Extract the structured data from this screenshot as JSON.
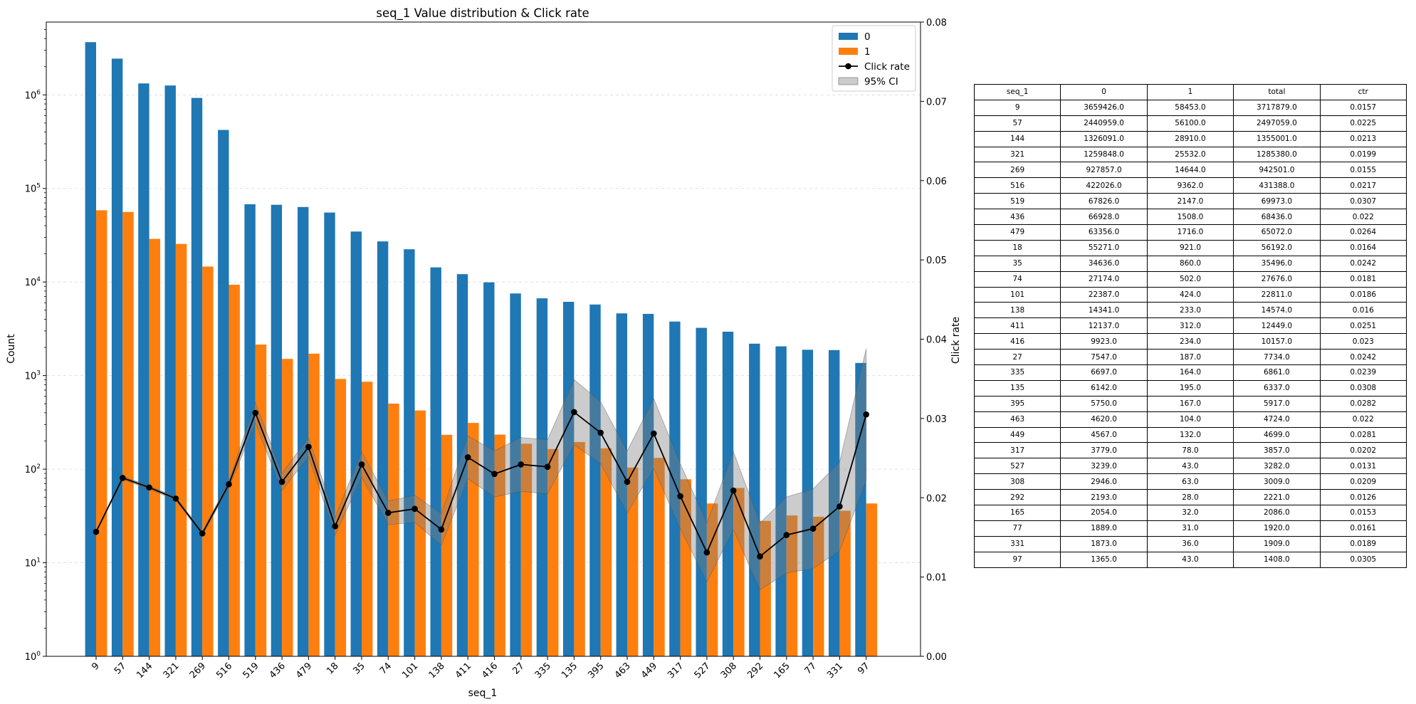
{
  "chart_data": {
    "type": "bar",
    "title": "seq_1 Value distribution & Click rate",
    "xlabel": "seq_1",
    "ylabel": "Count",
    "y2label": "Click rate",
    "yscale": "log",
    "ylim": [
      1,
      6000000
    ],
    "y_ticks": [
      {
        "value": 1,
        "label": "10^0"
      },
      {
        "value": 10,
        "label": "10^1"
      },
      {
        "value": 100,
        "label": "10^2"
      },
      {
        "value": 1000,
        "label": "10^3"
      },
      {
        "value": 10000,
        "label": "10^4"
      },
      {
        "value": 100000,
        "label": "10^5"
      },
      {
        "value": 1000000,
        "label": "10^6"
      }
    ],
    "y2lim": [
      0,
      0.08
    ],
    "y2_ticks": [
      "0.00",
      "0.01",
      "0.02",
      "0.03",
      "0.04",
      "0.05",
      "0.06",
      "0.07",
      "0.08"
    ],
    "grid": "horizontal dashed",
    "legend_position": "top-right",
    "categories": [
      "9",
      "57",
      "144",
      "321",
      "269",
      "516",
      "519",
      "436",
      "479",
      "18",
      "35",
      "74",
      "101",
      "138",
      "411",
      "416",
      "27",
      "335",
      "135",
      "395",
      "463",
      "449",
      "317",
      "527",
      "308",
      "292",
      "165",
      "77",
      "331",
      "97"
    ],
    "series": [
      {
        "name": "0",
        "kind": "bar",
        "color": "#1f77b4",
        "values": [
          3659426,
          2440959,
          1326091,
          1259848,
          927857,
          422026,
          67826,
          66928,
          63356,
          55271,
          34636,
          27174,
          22387,
          14341,
          12137,
          9923,
          7547,
          6697,
          6142,
          5750,
          4620,
          4567,
          3779,
          3239,
          2946,
          2193,
          2054,
          1889,
          1873,
          1365
        ]
      },
      {
        "name": "1",
        "kind": "bar",
        "color": "#ff7f0e",
        "values": [
          58453,
          56100,
          28910,
          25532,
          14644,
          9362,
          2147,
          1508,
          1716,
          921,
          860,
          502,
          424,
          233,
          312,
          234,
          187,
          164,
          195,
          167,
          104,
          132,
          78,
          43,
          63,
          28,
          32,
          31,
          36,
          43
        ]
      },
      {
        "name": "Click rate",
        "kind": "line",
        "axis": "right",
        "color": "#000000",
        "values": [
          0.0157,
          0.0225,
          0.0213,
          0.0199,
          0.0155,
          0.0217,
          0.0307,
          0.022,
          0.0264,
          0.0164,
          0.0242,
          0.0181,
          0.0186,
          0.016,
          0.0251,
          0.023,
          0.0242,
          0.0239,
          0.0308,
          0.0282,
          0.022,
          0.0281,
          0.0202,
          0.0131,
          0.0209,
          0.0126,
          0.0153,
          0.0161,
          0.0189,
          0.0305
        ]
      },
      {
        "name": "95% CI",
        "kind": "band",
        "axis": "right",
        "color": "#808080",
        "lower": [
          0.0156,
          0.0223,
          0.0211,
          0.0197,
          0.0153,
          0.0213,
          0.0294,
          0.0209,
          0.0252,
          0.0153,
          0.0226,
          0.0166,
          0.0169,
          0.014,
          0.0224,
          0.0201,
          0.0208,
          0.0205,
          0.0267,
          0.0243,
          0.0181,
          0.0237,
          0.0161,
          0.0094,
          0.016,
          0.0084,
          0.0105,
          0.0111,
          0.0133,
          0.0222
        ],
        "upper": [
          0.0158,
          0.0227,
          0.0215,
          0.0201,
          0.0157,
          0.0221,
          0.032,
          0.0231,
          0.0276,
          0.0175,
          0.0258,
          0.0196,
          0.0203,
          0.018,
          0.0278,
          0.0259,
          0.0276,
          0.0273,
          0.0349,
          0.0321,
          0.0259,
          0.0325,
          0.0243,
          0.0168,
          0.0258,
          0.0168,
          0.0201,
          0.0211,
          0.0245,
          0.0388
        ]
      }
    ],
    "annotations": []
  },
  "table": {
    "headers": [
      "seq_1",
      "0",
      "1",
      "total",
      "ctr"
    ],
    "rows": [
      [
        "9",
        "3659426.0",
        "58453.0",
        "3717879.0",
        "0.0157"
      ],
      [
        "57",
        "2440959.0",
        "56100.0",
        "2497059.0",
        "0.0225"
      ],
      [
        "144",
        "1326091.0",
        "28910.0",
        "1355001.0",
        "0.0213"
      ],
      [
        "321",
        "1259848.0",
        "25532.0",
        "1285380.0",
        "0.0199"
      ],
      [
        "269",
        "927857.0",
        "14644.0",
        "942501.0",
        "0.0155"
      ],
      [
        "516",
        "422026.0",
        "9362.0",
        "431388.0",
        "0.0217"
      ],
      [
        "519",
        "67826.0",
        "2147.0",
        "69973.0",
        "0.0307"
      ],
      [
        "436",
        "66928.0",
        "1508.0",
        "68436.0",
        "0.022"
      ],
      [
        "479",
        "63356.0",
        "1716.0",
        "65072.0",
        "0.0264"
      ],
      [
        "18",
        "55271.0",
        "921.0",
        "56192.0",
        "0.0164"
      ],
      [
        "35",
        "34636.0",
        "860.0",
        "35496.0",
        "0.0242"
      ],
      [
        "74",
        "27174.0",
        "502.0",
        "27676.0",
        "0.0181"
      ],
      [
        "101",
        "22387.0",
        "424.0",
        "22811.0",
        "0.0186"
      ],
      [
        "138",
        "14341.0",
        "233.0",
        "14574.0",
        "0.016"
      ],
      [
        "411",
        "12137.0",
        "312.0",
        "12449.0",
        "0.0251"
      ],
      [
        "416",
        "9923.0",
        "234.0",
        "10157.0",
        "0.023"
      ],
      [
        "27",
        "7547.0",
        "187.0",
        "7734.0",
        "0.0242"
      ],
      [
        "335",
        "6697.0",
        "164.0",
        "6861.0",
        "0.0239"
      ],
      [
        "135",
        "6142.0",
        "195.0",
        "6337.0",
        "0.0308"
      ],
      [
        "395",
        "5750.0",
        "167.0",
        "5917.0",
        "0.0282"
      ],
      [
        "463",
        "4620.0",
        "104.0",
        "4724.0",
        "0.022"
      ],
      [
        "449",
        "4567.0",
        "132.0",
        "4699.0",
        "0.0281"
      ],
      [
        "317",
        "3779.0",
        "78.0",
        "3857.0",
        "0.0202"
      ],
      [
        "527",
        "3239.0",
        "43.0",
        "3282.0",
        "0.0131"
      ],
      [
        "308",
        "2946.0",
        "63.0",
        "3009.0",
        "0.0209"
      ],
      [
        "292",
        "2193.0",
        "28.0",
        "2221.0",
        "0.0126"
      ],
      [
        "165",
        "2054.0",
        "32.0",
        "2086.0",
        "0.0153"
      ],
      [
        "77",
        "1889.0",
        "31.0",
        "1920.0",
        "0.0161"
      ],
      [
        "331",
        "1873.0",
        "36.0",
        "1909.0",
        "0.0189"
      ],
      [
        "97",
        "1365.0",
        "43.0",
        "1408.0",
        "0.0305"
      ]
    ]
  }
}
